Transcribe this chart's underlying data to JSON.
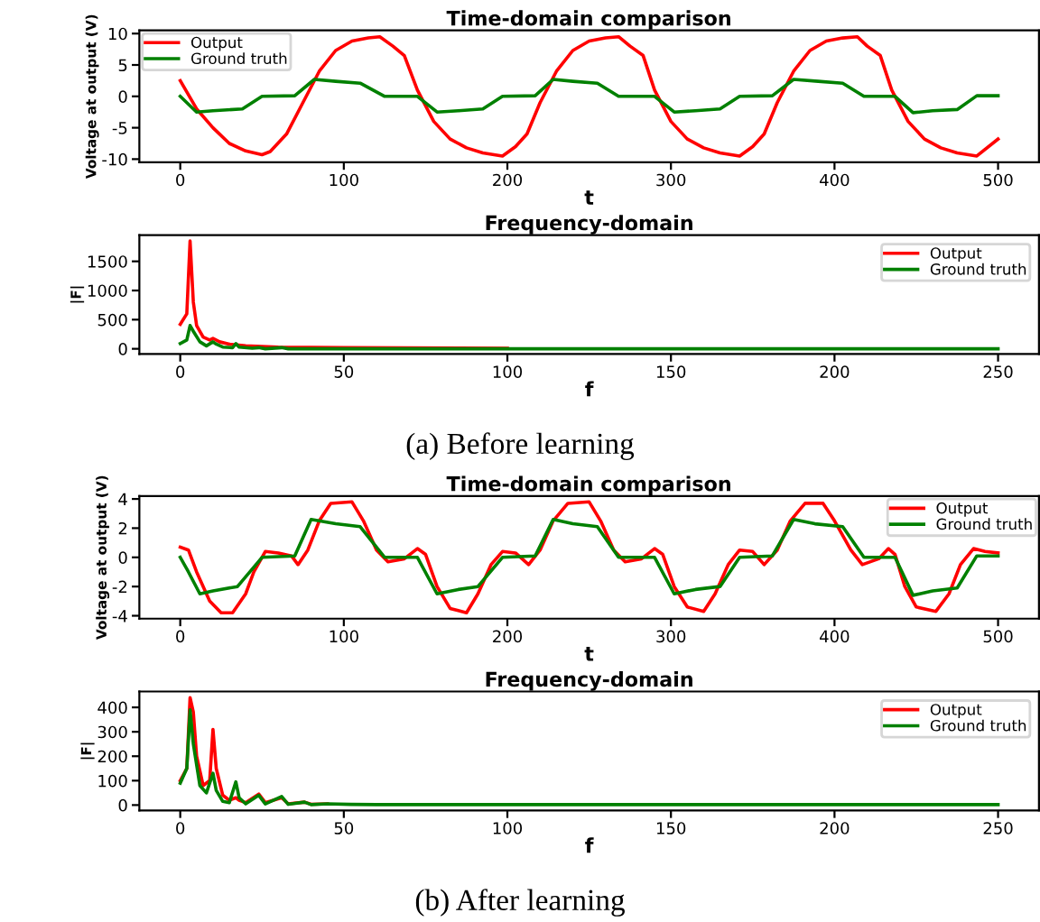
{
  "chart_data": [
    {
      "type": "line",
      "title": "Time-domain comparison",
      "xlabel": "t",
      "ylabel": "Voltage at output (V)",
      "xlim": [
        -25,
        525
      ],
      "ylim": [
        -10.5,
        10.5
      ],
      "xticks": [
        0,
        100,
        200,
        300,
        400,
        500
      ],
      "yticks": [
        -10,
        -5,
        0,
        5,
        10
      ],
      "legend": "top left",
      "grid": false,
      "series": [
        {
          "name": "Output",
          "color": "#ff0000",
          "x": [
            0,
            10,
            20,
            30,
            40,
            50,
            55,
            65,
            75,
            85,
            95,
            105,
            115,
            122,
            130,
            137,
            145,
            155,
            165,
            175,
            185,
            197,
            205,
            212,
            220,
            230,
            240,
            250,
            260,
            268,
            275,
            283,
            290,
            300,
            310,
            320,
            330,
            342,
            350,
            357,
            365,
            375,
            385,
            395,
            405,
            414,
            420,
            428,
            435,
            445,
            455,
            465,
            475,
            487,
            500
          ],
          "values": [
            2.5,
            -2,
            -5,
            -7.5,
            -8.7,
            -9.3,
            -8.8,
            -6,
            -1,
            4,
            7.3,
            8.8,
            9.3,
            9.5,
            8,
            6.5,
            1,
            -4,
            -6.8,
            -8.2,
            -9,
            -9.5,
            -8,
            -6,
            -1,
            4,
            7.3,
            8.8,
            9.3,
            9.5,
            8,
            6.5,
            1,
            -4,
            -6.8,
            -8.2,
            -9,
            -9.5,
            -8,
            -6,
            -1,
            4,
            7.3,
            8.8,
            9.3,
            9.5,
            8,
            6.5,
            1,
            -4,
            -6.8,
            -8.2,
            -9,
            -9.5,
            -6.8
          ]
        },
        {
          "name": "Ground truth",
          "color": "#008000",
          "x": [
            0,
            10,
            20,
            38,
            50,
            70,
            82,
            95,
            110,
            125,
            145,
            157,
            170,
            185,
            197,
            217,
            228,
            240,
            255,
            268,
            290,
            302,
            315,
            330,
            342,
            362,
            375,
            390,
            405,
            418,
            437,
            448,
            460,
            475,
            487,
            500
          ],
          "values": [
            0,
            -2.5,
            -2.3,
            -2,
            0,
            0.1,
            2.7,
            2.4,
            2.1,
            0,
            0,
            -2.5,
            -2.3,
            -2,
            0,
            0.1,
            2.7,
            2.4,
            2.1,
            0,
            0,
            -2.5,
            -2.3,
            -2,
            0,
            0.1,
            2.7,
            2.4,
            2.1,
            0,
            0,
            -2.6,
            -2.3,
            -2.1,
            0.1,
            0.1
          ]
        }
      ]
    },
    {
      "type": "line",
      "title": "Frequency-domain",
      "xlabel": "f",
      "ylabel": "|F|",
      "xlim": [
        -12.5,
        262.5
      ],
      "ylim": [
        -90,
        1950
      ],
      "xticks": [
        0,
        50,
        100,
        150,
        200,
        250
      ],
      "yticks": [
        0,
        500,
        1000,
        1500
      ],
      "legend": "top right",
      "grid": false,
      "annotations": [
        "(a) Before learning"
      ],
      "series": [
        {
          "name": "Output",
          "color": "#ff0000",
          "x": [
            0,
            2,
            3,
            4,
            5,
            7,
            9,
            10,
            12,
            15,
            20,
            30,
            50,
            100
          ],
          "values": [
            420,
            600,
            1850,
            800,
            400,
            200,
            150,
            180,
            120,
            80,
            50,
            30,
            20,
            10
          ]
        },
        {
          "name": "Ground truth",
          "color": "#008000",
          "x": [
            0,
            2,
            3,
            4,
            6,
            8,
            10,
            11,
            13,
            16,
            17,
            18,
            22,
            24,
            26,
            31,
            33,
            50,
            100,
            250
          ],
          "values": [
            90,
            150,
            400,
            300,
            120,
            50,
            120,
            80,
            30,
            20,
            90,
            30,
            10,
            20,
            0,
            20,
            0,
            0,
            0,
            0
          ]
        }
      ]
    },
    {
      "type": "line",
      "title": "Time-domain comparison",
      "xlabel": "t",
      "ylabel": "Voltage at output (V)",
      "xlim": [
        -25,
        525
      ],
      "ylim": [
        -4.2,
        4.2
      ],
      "xticks": [
        0,
        100,
        200,
        300,
        400,
        500
      ],
      "yticks": [
        -4,
        -2,
        0,
        2,
        4
      ],
      "legend": "top right",
      "grid": false,
      "series": [
        {
          "name": "Output",
          "color": "#ff0000",
          "x": [
            0,
            5,
            10,
            18,
            25,
            32,
            40,
            45,
            52,
            60,
            68,
            72,
            78,
            85,
            92,
            105,
            112,
            120,
            127,
            137,
            145,
            150,
            157,
            165,
            175,
            182,
            190,
            197,
            205,
            213,
            220,
            228,
            237,
            250,
            257,
            265,
            272,
            282,
            290,
            295,
            302,
            310,
            320,
            327,
            335,
            342,
            350,
            357,
            365,
            373,
            382,
            393,
            400,
            410,
            417,
            427,
            433,
            437,
            443,
            450,
            462,
            470,
            477,
            485,
            492,
            500
          ],
          "values": [
            0.7,
            0.5,
            -1,
            -3,
            -3.8,
            -3.8,
            -2.5,
            -1,
            0.4,
            0.3,
            0.1,
            -0.5,
            0.5,
            2.5,
            3.7,
            3.8,
            2.5,
            0.5,
            -0.3,
            -0.1,
            0.6,
            0.2,
            -2,
            -3.5,
            -3.8,
            -2.5,
            -0.5,
            0.4,
            0.3,
            -0.5,
            0.5,
            2.5,
            3.7,
            3.8,
            2.5,
            0.5,
            -0.3,
            -0.1,
            0.6,
            0.2,
            -2,
            -3.4,
            -3.7,
            -2.5,
            -0.5,
            0.5,
            0.4,
            -0.5,
            0.5,
            2.5,
            3.7,
            3.7,
            2.5,
            0.5,
            -0.5,
            -0.1,
            0.6,
            0.2,
            -2,
            -3.4,
            -3.7,
            -2.5,
            -0.5,
            0.6,
            0.4,
            0.3
          ]
        },
        {
          "name": "Ground truth",
          "color": "#008000",
          "x": [
            0,
            5,
            12,
            20,
            35,
            50,
            70,
            80,
            95,
            110,
            125,
            145,
            157,
            170,
            182,
            197,
            217,
            228,
            240,
            255,
            268,
            290,
            302,
            315,
            330,
            342,
            362,
            375,
            388,
            405,
            418,
            437,
            448,
            460,
            475,
            487,
            500
          ],
          "values": [
            0,
            -1,
            -2.5,
            -2.3,
            -2,
            0,
            0.1,
            2.6,
            2.3,
            2.1,
            0,
            0,
            -2.5,
            -2.2,
            -2,
            0,
            0.1,
            2.6,
            2.3,
            2.1,
            0,
            0,
            -2.5,
            -2.2,
            -2,
            0,
            0.1,
            2.6,
            2.3,
            2.1,
            0,
            0,
            -2.6,
            -2.3,
            -2.1,
            0.1,
            0.1
          ]
        }
      ]
    },
    {
      "type": "line",
      "title": "Frequency-domain",
      "xlabel": "f",
      "ylabel": "|F|",
      "xlim": [
        -12.5,
        262.5
      ],
      "ylim": [
        -22,
        465
      ],
      "xticks": [
        0,
        50,
        100,
        150,
        200,
        250
      ],
      "yticks": [
        0,
        100,
        200,
        300,
        400
      ],
      "legend": "top right",
      "grid": false,
      "annotations": [
        "(b) After learning"
      ],
      "series": [
        {
          "name": "Output",
          "color": "#ff0000",
          "x": [
            0,
            2,
            3,
            4,
            5,
            7,
            9,
            10,
            11,
            13,
            15,
            17,
            18,
            20,
            24,
            26,
            31,
            33,
            38,
            40,
            45
          ],
          "values": [
            100,
            150,
            440,
            380,
            200,
            80,
            100,
            310,
            150,
            40,
            20,
            30,
            20,
            10,
            45,
            10,
            30,
            5,
            12,
            3,
            5
          ]
        },
        {
          "name": "Ground truth",
          "color": "#008000",
          "x": [
            0,
            2,
            3,
            4,
            6,
            8,
            10,
            11,
            13,
            15,
            17,
            18,
            20,
            24,
            26,
            31,
            33,
            38,
            40,
            45,
            52,
            60,
            250
          ],
          "values": [
            90,
            150,
            390,
            250,
            80,
            50,
            130,
            60,
            15,
            10,
            95,
            30,
            5,
            40,
            5,
            35,
            3,
            12,
            2,
            5,
            3,
            2,
            2
          ]
        }
      ]
    }
  ]
}
